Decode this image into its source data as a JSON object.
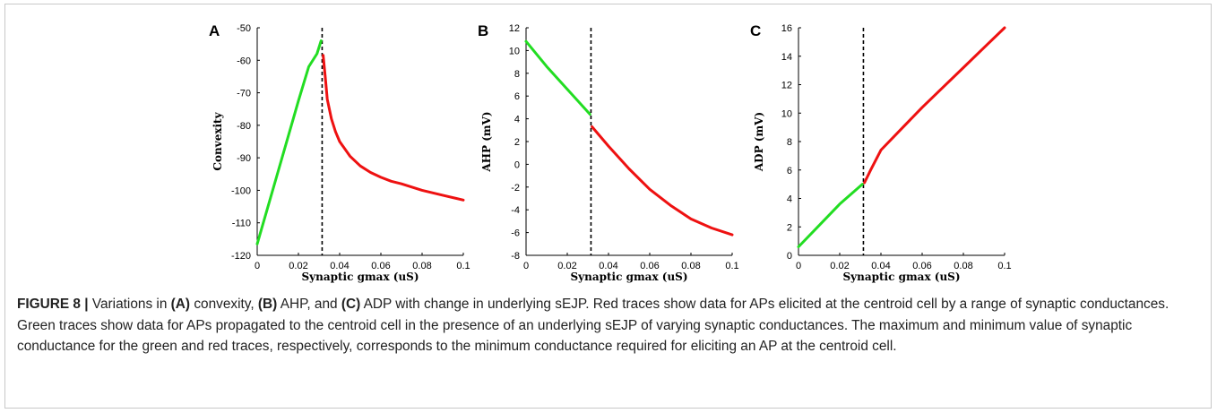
{
  "charts": [
    {
      "panel": "A",
      "chart_data": {
        "type": "line",
        "xlabel": "Synaptic gmax (uS)",
        "ylabel": "Convexity",
        "xlim": [
          0,
          0.1
        ],
        "ylim": [
          -120,
          -50
        ],
        "xticks": [
          0,
          0.02,
          0.04,
          0.06,
          0.08,
          0.1
        ],
        "xtick_labels": [
          "0",
          "0.02",
          "0.04",
          "0.06",
          "0.08",
          "0.1"
        ],
        "yticks": [
          -120,
          -110,
          -100,
          -90,
          -80,
          -70,
          -60,
          -50
        ],
        "ytick_labels": [
          "-120",
          "-110",
          "-100",
          "-90",
          "-80",
          "-70",
          "-60",
          "-50"
        ],
        "threshold_x": 0.0315,
        "series": [
          {
            "color": "#22dd22",
            "x": [
              0,
              0.005,
              0.01,
              0.015,
              0.02,
              0.025,
              0.029,
              0.031
            ],
            "y": [
              -116.5,
              -105.5,
              -94.5,
              -83.5,
              -72.5,
              -62,
              -58,
              -54
            ]
          },
          {
            "color": "#ee1111",
            "x": [
              0.032,
              0.033,
              0.034,
              0.036,
              0.038,
              0.04,
              0.045,
              0.05,
              0.055,
              0.06,
              0.065,
              0.07,
              0.08,
              0.09,
              0.1
            ],
            "y": [
              -58.5,
              -65,
              -72,
              -78,
              -82,
              -85,
              -89.5,
              -92.5,
              -94.5,
              -96,
              -97.2,
              -98,
              -100,
              -101.5,
              -103
            ]
          }
        ]
      }
    },
    {
      "panel": "B",
      "chart_data": {
        "type": "line",
        "xlabel": "Synaptic gmax (uS)",
        "ylabel": "AHP (mV)",
        "xlim": [
          0,
          0.1
        ],
        "ylim": [
          -8,
          12
        ],
        "xticks": [
          0,
          0.02,
          0.04,
          0.06,
          0.08,
          0.1
        ],
        "xtick_labels": [
          "0",
          "0.02",
          "0.04",
          "0.06",
          "0.08",
          "0.1"
        ],
        "yticks": [
          -8,
          -6,
          -4,
          -2,
          0,
          2,
          4,
          6,
          8,
          10,
          12
        ],
        "ytick_labels": [
          "-8",
          "-6",
          "-4",
          "-2",
          "0",
          "2",
          "4",
          "6",
          "8",
          "10",
          "12"
        ],
        "threshold_x": 0.0315,
        "series": [
          {
            "color": "#22dd22",
            "x": [
              0,
              0.01,
              0.02,
              0.031
            ],
            "y": [
              10.8,
              8.6,
              6.6,
              4.4
            ]
          },
          {
            "color": "#ee1111",
            "x": [
              0.032,
              0.04,
              0.05,
              0.06,
              0.07,
              0.08,
              0.09,
              0.1
            ],
            "y": [
              3.3,
              1.6,
              -0.4,
              -2.2,
              -3.6,
              -4.8,
              -5.6,
              -6.2
            ]
          }
        ]
      }
    },
    {
      "panel": "C",
      "chart_data": {
        "type": "line",
        "xlabel": "Synaptic gmax (uS)",
        "ylabel": "ADP (mV)",
        "xlim": [
          0,
          0.1
        ],
        "ylim": [
          0,
          16
        ],
        "xticks": [
          0,
          0.02,
          0.04,
          0.06,
          0.08,
          0.1
        ],
        "xtick_labels": [
          "0",
          "0.02",
          "0.04",
          "0.06",
          "0.08",
          "0.1"
        ],
        "yticks": [
          0,
          2,
          4,
          6,
          8,
          10,
          12,
          14,
          16
        ],
        "ytick_labels": [
          "0",
          "2",
          "4",
          "6",
          "8",
          "10",
          "12",
          "14",
          "16"
        ],
        "threshold_x": 0.0315,
        "series": [
          {
            "color": "#22dd22",
            "x": [
              0,
              0.01,
              0.02,
              0.031
            ],
            "y": [
              0.6,
              2.1,
              3.6,
              5.0
            ]
          },
          {
            "color": "#ee1111",
            "x": [
              0.032,
              0.035,
              0.04,
              0.05,
              0.06,
              0.07,
              0.08,
              0.09,
              0.1
            ],
            "y": [
              5.1,
              6.0,
              7.4,
              8.9,
              10.4,
              11.8,
              13.2,
              14.6,
              16.0
            ]
          }
        ]
      }
    }
  ],
  "caption": {
    "figure_label": "FIGURE 8 |",
    "segments": [
      " Variations in ",
      "(A)",
      " convexity, ",
      "(B)",
      " AHP, and ",
      "(C)",
      " ADP with change in underlying sEJP. Red traces show data for APs elicited at the centroid cell by a range of synaptic conductances. Green traces show data for APs propagated to the centroid cell in the presence of an underlying sEJP of varying synaptic conductances. The maximum and minimum value of synaptic conductance for the green and red traces, respectively, corresponds to the minimum conductance required for eliciting an AP at the centroid cell."
    ]
  }
}
